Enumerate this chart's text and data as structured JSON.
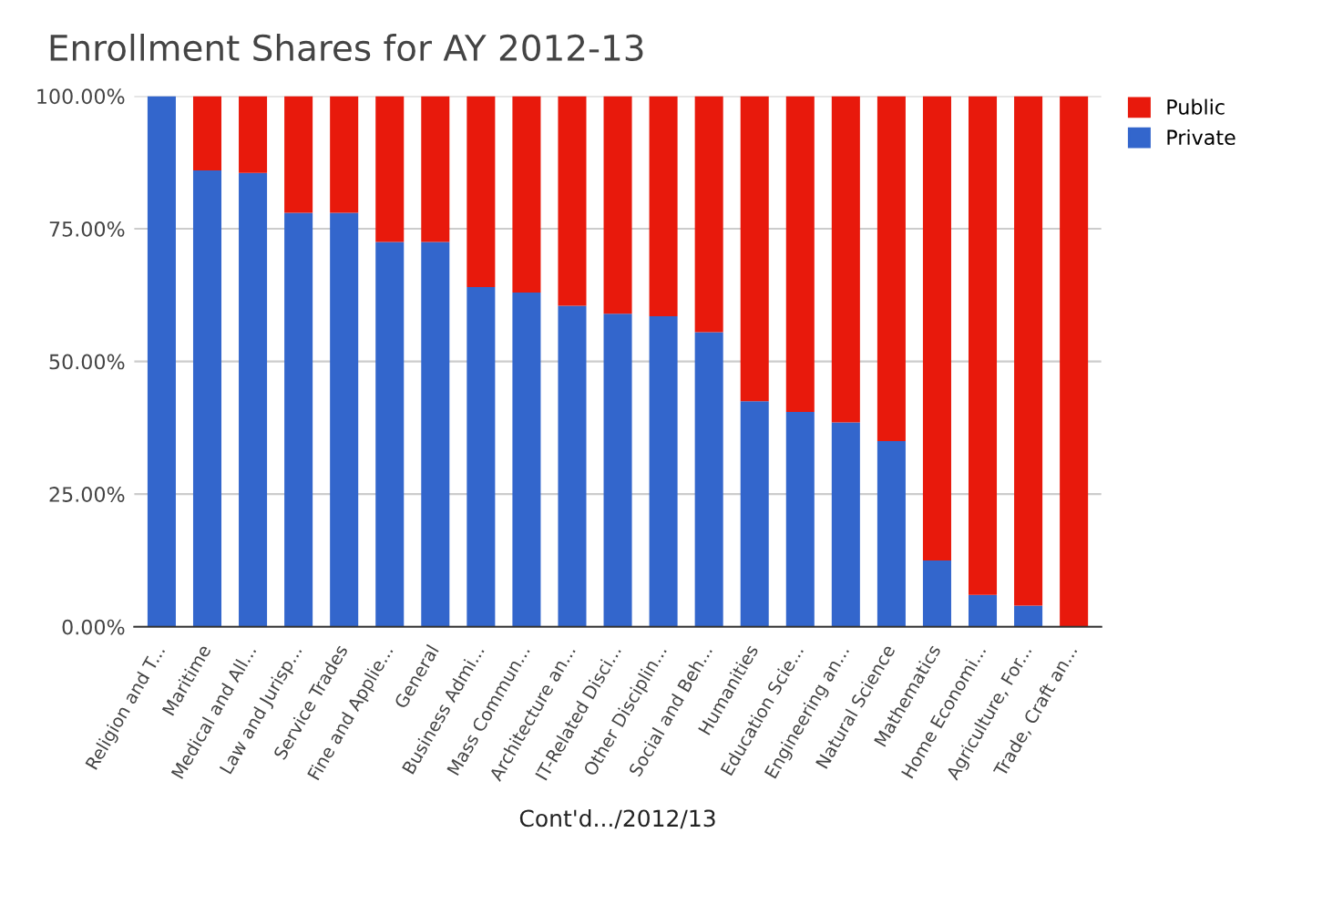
{
  "chart_data": {
    "type": "bar",
    "title": "Enrollment Shares for AY 2012-13",
    "xlabel": "Cont'd.../2012/13",
    "categories": [
      "Religion and T...",
      "Maritime",
      "Medical and All...",
      "Law and Jurisp...",
      "Service Trades",
      "Fine and Applie...",
      "General",
      "Business Admi...",
      "Mass Commun...",
      "Architecture an...",
      "IT-Related Disci...",
      "Other Disciplin...",
      "Social and Beh...",
      "Humanities",
      "Education Scie...",
      "Engineering an...",
      "Natural Science",
      "Mathematics",
      "Home Economi...",
      "Agriculture, For...",
      "Trade, Craft an..."
    ],
    "stacked": true,
    "series": [
      {
        "name": "Private",
        "color": "#3366cc",
        "values": [
          100,
          86,
          85.5,
          78,
          78,
          72.5,
          72.5,
          64,
          63,
          60.5,
          59,
          58.5,
          55.5,
          42.5,
          40.5,
          38.5,
          35,
          12.5,
          6,
          4,
          0
        ]
      },
      {
        "name": "Public",
        "color": "#e8190c",
        "values": [
          0,
          14,
          14.5,
          22,
          22,
          27.5,
          27.5,
          36,
          37,
          39.5,
          41,
          41.5,
          44.5,
          57.5,
          59.5,
          61.5,
          65,
          87.5,
          94,
          96,
          100
        ]
      }
    ],
    "ylim": [
      0,
      100
    ],
    "yticks": [
      {
        "value": 0,
        "label": "0.00%"
      },
      {
        "value": 25,
        "label": "25.00%"
      },
      {
        "value": 50,
        "label": "50.00%"
      },
      {
        "value": 75,
        "label": "75.00%"
      },
      {
        "value": 100,
        "label": "100.00%"
      }
    ],
    "grid": "y",
    "legend": "top right"
  }
}
